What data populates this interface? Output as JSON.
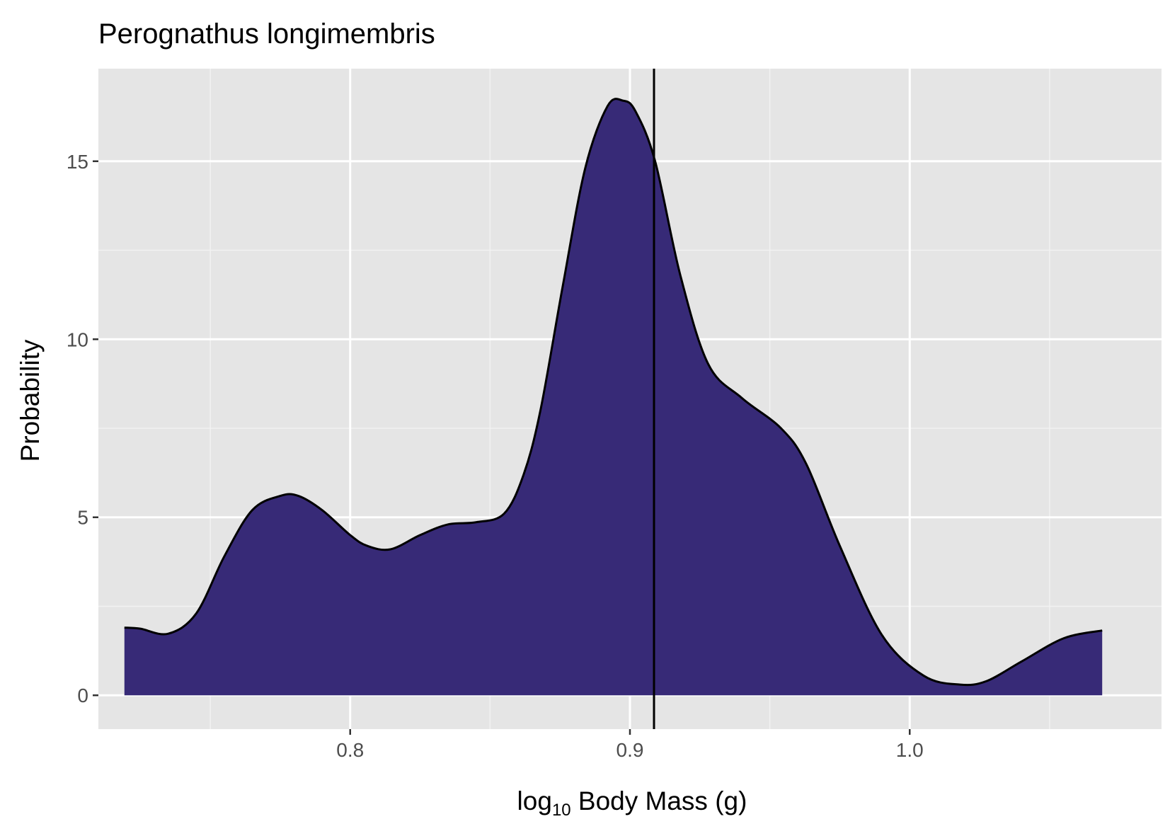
{
  "chart_data": {
    "type": "area",
    "title": "Perognathus longimembris",
    "xlabel": {
      "prefix": "log",
      "subscript": "10",
      "suffix": " Body Mass (g)"
    },
    "ylabel": "Probability",
    "xlim": [
      0.71,
      1.09
    ],
    "ylim": [
      -0.95,
      17.6
    ],
    "x_ticks": [
      {
        "value": 0.8,
        "label": "0.8"
      },
      {
        "value": 0.9,
        "label": "0.9"
      },
      {
        "value": 1.0,
        "label": "1.0"
      }
    ],
    "x_minor_ticks": [
      0.75,
      0.85,
      0.95,
      1.05
    ],
    "y_ticks": [
      {
        "value": 0,
        "label": "0"
      },
      {
        "value": 5,
        "label": "5"
      },
      {
        "value": 10,
        "label": "10"
      },
      {
        "value": 15,
        "label": "15"
      }
    ],
    "y_minor_ticks": [
      2.5,
      7.5,
      12.5
    ],
    "grid": true,
    "series": [
      {
        "fill_color": "#372a77",
        "line_color": "#000000",
        "x": [
          0.7193,
          0.725,
          0.735,
          0.745,
          0.755,
          0.765,
          0.775,
          0.7815,
          0.79,
          0.8,
          0.806,
          0.8144,
          0.825,
          0.835,
          0.845,
          0.855,
          0.862,
          0.868,
          0.876,
          0.884,
          0.892,
          0.8976,
          0.902,
          0.909,
          0.918,
          0.928,
          0.94,
          0.954,
          0.963,
          0.975,
          0.99,
          1.005,
          1.018,
          1.0275,
          1.04,
          1.055,
          1.0688
        ],
        "y": [
          1.9,
          1.87,
          1.73,
          2.3,
          3.9,
          5.2,
          5.6,
          5.6,
          5.2,
          4.5,
          4.2,
          4.1,
          4.5,
          4.8,
          4.86,
          5.1,
          6.2,
          8.0,
          11.5,
          14.8,
          16.55,
          16.7,
          16.4,
          15.0,
          11.8,
          9.3,
          8.35,
          7.5,
          6.5,
          4.2,
          1.7,
          0.55,
          0.3,
          0.4,
          0.95,
          1.6,
          1.82
        ]
      }
    ],
    "vline": {
      "x": 0.9086,
      "color": "#000000"
    }
  }
}
